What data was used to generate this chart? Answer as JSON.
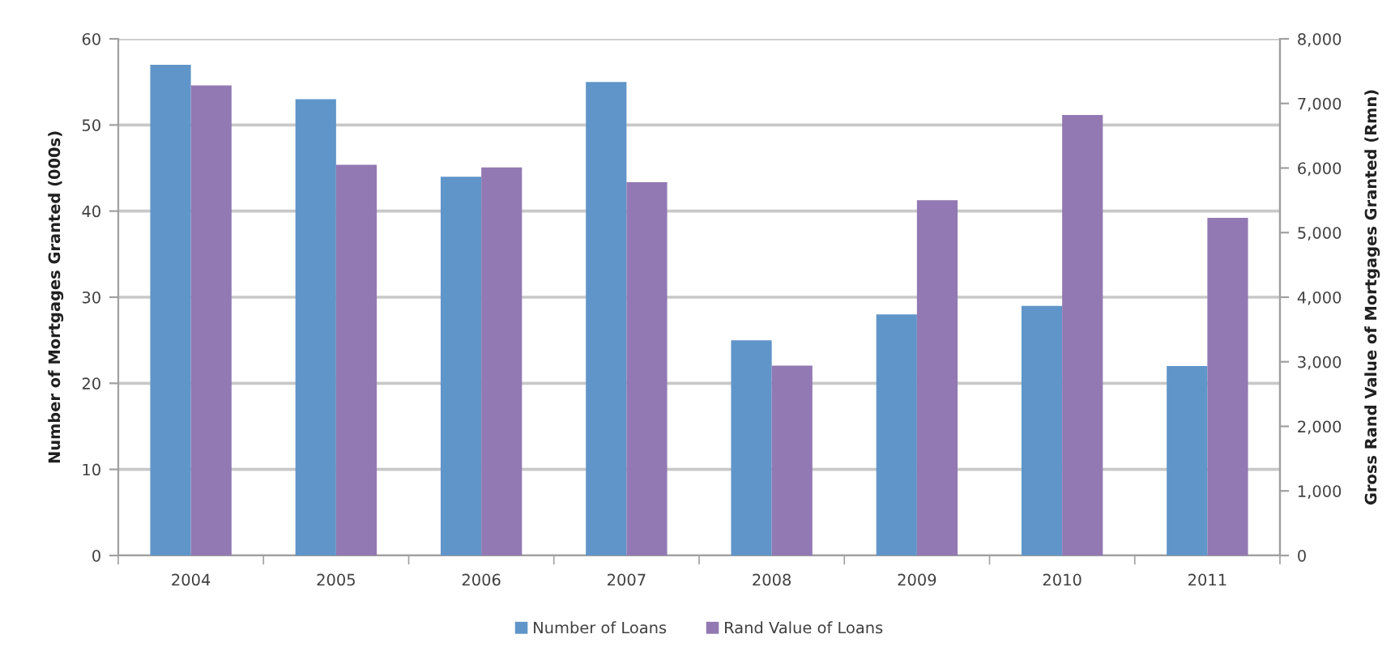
{
  "chart_data": {
    "type": "bar",
    "categories": [
      "2004",
      "2005",
      "2006",
      "2007",
      "2008",
      "2009",
      "2010",
      "2011"
    ],
    "series": [
      {
        "name": "Number of Loans",
        "color": "#6095c9",
        "values": [
          57,
          53,
          44,
          55,
          25,
          28,
          29,
          22
        ]
      },
      {
        "name": "Rand Value of Loans",
        "color": "#9279b3",
        "axis": "y2",
        "values": [
          7280,
          6050,
          6010,
          5780,
          2940,
          5500,
          6820,
          5230
        ]
      }
    ],
    "ylabel": "Number of Mortgages Granted (000s)",
    "y2label": "Gross Rand Value of Mortgages Granted (Rmn)",
    "ylim": [
      0,
      60
    ],
    "yticks": [
      0,
      10,
      20,
      30,
      40,
      50,
      60
    ],
    "y2lim": [
      0,
      8000
    ],
    "y2ticks": [
      0,
      {
        "value": 1000,
        "label": "1,000"
      },
      {
        "value": 2000,
        "label": "2,000"
      },
      {
        "value": 3000,
        "label": "3,000"
      },
      {
        "value": 4000,
        "label": "4,000"
      },
      {
        "value": 5000,
        "label": "5,000"
      },
      {
        "value": 6000,
        "label": "6,000"
      },
      {
        "value": 7000,
        "label": "7,000"
      },
      {
        "value": 8000,
        "label": "8,000"
      }
    ],
    "grid": "y",
    "legend": "bottom"
  }
}
